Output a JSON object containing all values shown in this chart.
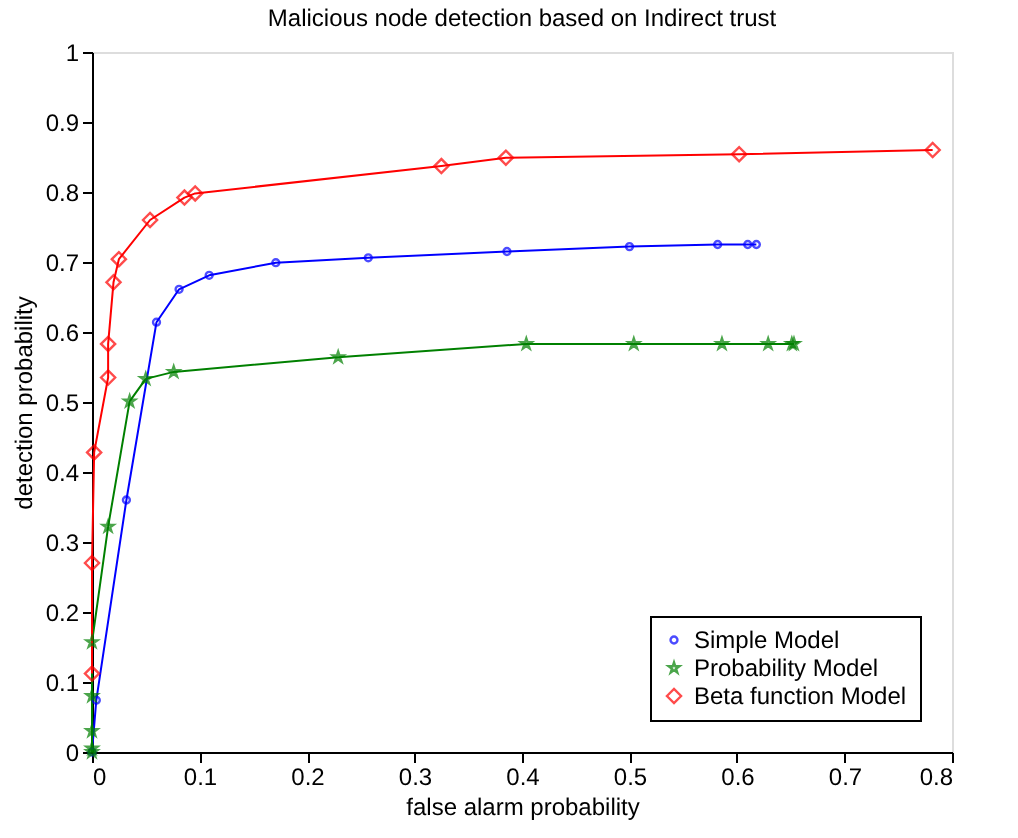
{
  "chart_data": {
    "type": "line",
    "title": "Malicious node detection based on Indirect trust",
    "xlabel": "false alarm probability",
    "ylabel": "detection probability",
    "xlim": [
      0,
      0.8
    ],
    "xticks": [
      0,
      0.1,
      0.2,
      0.3,
      0.4,
      0.5,
      0.6,
      0.7,
      0.8
    ],
    "ylim": [
      0,
      1
    ],
    "yticks": [
      0,
      0.1,
      0.2,
      0.3,
      0.4,
      0.5,
      0.6,
      0.7,
      0.8,
      0.9,
      1
    ],
    "grid": false,
    "legend": "bottom right",
    "series": [
      {
        "name": "Simple Model",
        "color": "#0000ff",
        "marker": "circle",
        "x": [
          0,
          0.004,
          0.032,
          0.06,
          0.081,
          0.109,
          0.171,
          0.257,
          0.386,
          0.5,
          0.582,
          0.61,
          0.618
        ],
        "values": [
          0,
          0.074,
          0.36,
          0.614,
          0.661,
          0.681,
          0.699,
          0.706,
          0.715,
          0.722,
          0.725,
          0.725,
          0.725
        ]
      },
      {
        "name": "Probability Model",
        "color": "#008000",
        "marker": "star",
        "x": [
          0,
          0,
          0,
          0,
          0,
          0.015,
          0.035,
          0.05,
          0.076,
          0.229,
          0.404,
          0.504,
          0.586,
          0.629,
          0.651,
          0.653
        ],
        "values": [
          0,
          0.005,
          0.03,
          0.08,
          0.157,
          0.322,
          0.501,
          0.533,
          0.543,
          0.564,
          0.583,
          0.583,
          0.583,
          0.583,
          0.583,
          0.583
        ]
      },
      {
        "name": "Beta function Model",
        "color": "#ff0000",
        "marker": "diamond",
        "x": [
          0,
          0,
          0.002,
          0.015,
          0.015,
          0.02,
          0.025,
          0.054,
          0.086,
          0.096,
          0.325,
          0.385,
          0.602,
          0.782
        ],
        "values": [
          0.112,
          0.27,
          0.428,
          0.535,
          0.583,
          0.671,
          0.704,
          0.76,
          0.792,
          0.798,
          0.837,
          0.849,
          0.854,
          0.86
        ]
      }
    ]
  }
}
